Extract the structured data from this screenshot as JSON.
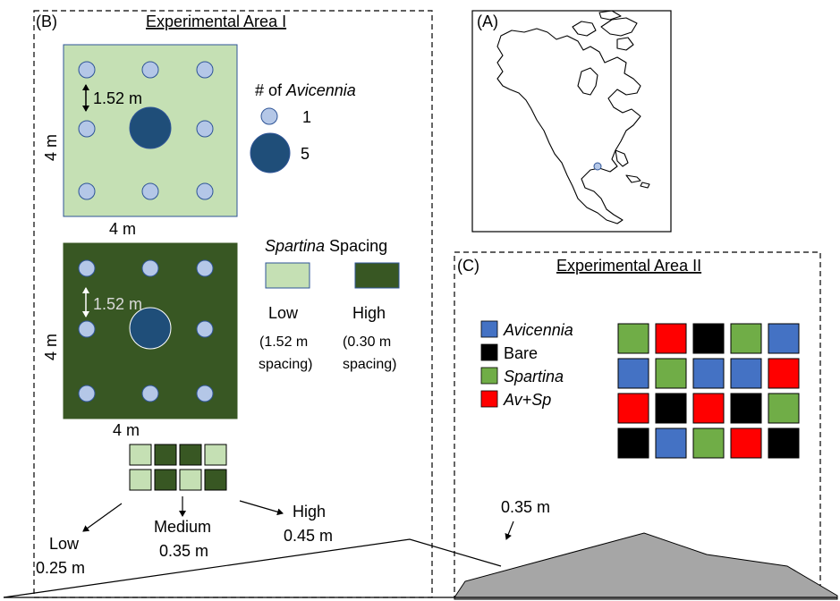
{
  "panel_a": {
    "label": "(A)"
  },
  "panel_b": {
    "label": "(B)",
    "title": "Experimental Area I",
    "plot_low": {
      "spacing_text": "1.52 m",
      "side_text": "4 m",
      "bottom_text": "4 m"
    },
    "plot_high": {
      "spacing_text": "1.52 m",
      "side_text": "4 m",
      "bottom_text": "4 m"
    },
    "avicennia_legend": {
      "title_prefix": "# of ",
      "title_species": "Avicennia",
      "small_value": "1",
      "large_value": "5"
    },
    "spartina_legend": {
      "title_species": "Spartina",
      "title_suffix": " Spacing",
      "low_label": "Low",
      "low_detail_1": "(1.52 m",
      "low_detail_2": "spacing)",
      "high_label": "High",
      "high_detail_1": "(0.30 m",
      "high_detail_2": "spacing)"
    },
    "elevation_labels": {
      "low_name": "Low",
      "low_value": "0.25 m",
      "medium_name": "Medium",
      "medium_value": "0.35 m",
      "high_name": "High",
      "high_value": "0.45 m"
    },
    "mini_grid": [
      [
        "light",
        "dark",
        "dark",
        "light"
      ],
      [
        "light",
        "dark",
        "light",
        "dark"
      ]
    ]
  },
  "panel_c": {
    "label": "(C)",
    "title": "Experimental Area II",
    "legend": [
      {
        "name": "Avicennia",
        "color": "#4472c4",
        "italic": true
      },
      {
        "name": "Bare",
        "color": "#000000",
        "italic": false
      },
      {
        "name": "Spartina",
        "color": "#70ad47",
        "italic": true
      },
      {
        "name": "Av+Sp",
        "color": "#ff0000",
        "italic": true
      }
    ],
    "grid": [
      [
        "Spartina",
        "Av+Sp",
        "Bare",
        "Spartina",
        "Avicennia"
      ],
      [
        "Avicennia",
        "Spartina",
        "Avicennia",
        "Avicennia",
        "Av+Sp"
      ],
      [
        "Av+Sp",
        "Bare",
        "Av+Sp",
        "Bare",
        "Spartina"
      ],
      [
        "Bare",
        "Avicennia",
        "Spartina",
        "Av+Sp",
        "Bare"
      ]
    ],
    "elevation_value": "0.35 m"
  },
  "colors": {
    "low_spacing": "#c5e0b4",
    "high_spacing": "#385723",
    "small_dot": "#b4c7e7",
    "large_dot": "#1f4e79",
    "mound": "#a6a6a6",
    "plot_border": "#2f5597"
  }
}
